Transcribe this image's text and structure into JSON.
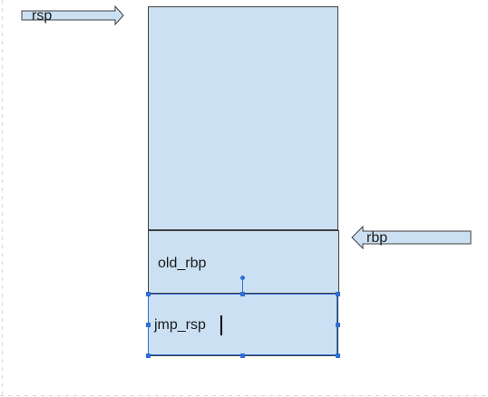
{
  "diagram": {
    "stack_blocks": [
      {
        "id": "top",
        "label": ""
      },
      {
        "id": "old_rbp",
        "label": "old_rbp"
      },
      {
        "id": "jmp_rsp",
        "label": "jmp_rsp"
      }
    ],
    "pointers": {
      "rsp": {
        "label": "rsp",
        "direction": "right"
      },
      "rbp": {
        "label": "rbp",
        "direction": "left"
      }
    },
    "colors": {
      "block_fill": "#cce0f3",
      "block_border": "#3f3f3f",
      "selection": "#2f6fd6"
    }
  }
}
